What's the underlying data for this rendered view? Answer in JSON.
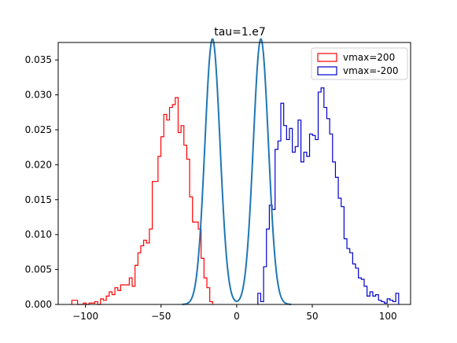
{
  "chart_data": {
    "type": "histogram",
    "title": "tau=1.e7",
    "xlabel": "",
    "ylabel": "",
    "xlim": [
      -118,
      115
    ],
    "ylim": [
      0,
      0.0375
    ],
    "x_ticks": [
      -100,
      -50,
      0,
      50,
      100
    ],
    "y_ticks": [
      0.0,
      0.005,
      0.01,
      0.015,
      0.02,
      0.025,
      0.03,
      0.035
    ],
    "x_tick_labels": [
      "−100",
      "−50",
      "0",
      "50",
      "100"
    ],
    "y_tick_labels": [
      "0.000",
      "0.005",
      "0.010",
      "0.015",
      "0.020",
      "0.025",
      "0.030",
      "0.035"
    ],
    "grid": false,
    "legend_position": "top-right",
    "bin_width": 1.9,
    "series": [
      {
        "name": "vmax=200",
        "kind": "step-histogram",
        "color": "#ff0000",
        "x": [
          -109.0,
          -107.1,
          -105.2,
          -103.3,
          -101.4,
          -99.5,
          -97.6,
          -95.7,
          -93.8,
          -91.9,
          -90.0,
          -88.1,
          -86.2,
          -84.3,
          -82.4,
          -80.5,
          -78.6,
          -76.7,
          -74.8,
          -72.9,
          -71.0,
          -69.1,
          -67.2,
          -65.3,
          -63.4,
          -61.5,
          -59.6,
          -57.7,
          -55.8,
          -53.9,
          -52.0,
          -50.1,
          -48.2,
          -46.3,
          -44.4,
          -42.5,
          -40.6,
          -38.7,
          -36.8,
          -34.9,
          -33.0,
          -31.1,
          -29.2,
          -27.3,
          -25.4,
          -23.5,
          -21.6,
          -19.7,
          -17.8
        ],
        "values": [
          0.0006,
          0.0006,
          0.0,
          0.0,
          0.0002,
          0.0,
          0.0002,
          0.0002,
          0.0004,
          0.0,
          0.0008,
          0.0006,
          0.0012,
          0.0018,
          0.0014,
          0.0024,
          0.002,
          0.0028,
          0.0028,
          0.0028,
          0.0038,
          0.0026,
          0.0056,
          0.0074,
          0.0084,
          0.0092,
          0.0088,
          0.0108,
          0.0176,
          0.0176,
          0.0212,
          0.024,
          0.0272,
          0.0264,
          0.0282,
          0.0286,
          0.0296,
          0.0246,
          0.0256,
          0.0228,
          0.0208,
          0.0154,
          0.0118,
          0.0118,
          0.0108,
          0.0066,
          0.0038,
          0.0024,
          0.0004
        ]
      },
      {
        "name": "vmax=-200",
        "kind": "step-histogram",
        "color": "#0000cc",
        "x": [
          14.0,
          15.9,
          17.8,
          19.7,
          21.6,
          23.5,
          25.4,
          27.3,
          29.2,
          31.1,
          33.0,
          34.9,
          36.8,
          38.7,
          40.6,
          42.5,
          44.4,
          46.3,
          48.2,
          50.1,
          52.0,
          53.9,
          55.8,
          57.7,
          59.6,
          61.5,
          63.4,
          65.3,
          67.2,
          69.1,
          71.0,
          72.9,
          74.8,
          76.7,
          78.6,
          80.5,
          82.4,
          84.3,
          86.2,
          88.1,
          90.0,
          91.9,
          93.8,
          95.7,
          97.6,
          99.5,
          101.4,
          103.3,
          105.2
        ],
        "values": [
          0.0016,
          0.0004,
          0.0054,
          0.0108,
          0.0142,
          0.0136,
          0.0222,
          0.0234,
          0.0288,
          0.0256,
          0.0236,
          0.0252,
          0.0218,
          0.0226,
          0.0264,
          0.0204,
          0.0218,
          0.0212,
          0.0244,
          0.0242,
          0.0236,
          0.0304,
          0.031,
          0.0282,
          0.0266,
          0.0244,
          0.0204,
          0.0182,
          0.0152,
          0.014,
          0.0094,
          0.008,
          0.0074,
          0.0058,
          0.0052,
          0.0038,
          0.0036,
          0.0026,
          0.0012,
          0.0018,
          0.0012,
          0.0014,
          0.0006,
          0.0004,
          0.0002,
          0.0008,
          0.0006,
          0.0004,
          0.0016
        ]
      },
      {
        "name": "",
        "kind": "line",
        "color": "#1f77b4",
        "peaks": [
          -16,
          16
        ],
        "peak_height": 0.038,
        "sigma": 5.0
      }
    ],
    "legend": [
      {
        "label": "vmax=200",
        "color": "#ff0000"
      },
      {
        "label": "vmax=-200",
        "color": "#0000cc"
      }
    ]
  }
}
